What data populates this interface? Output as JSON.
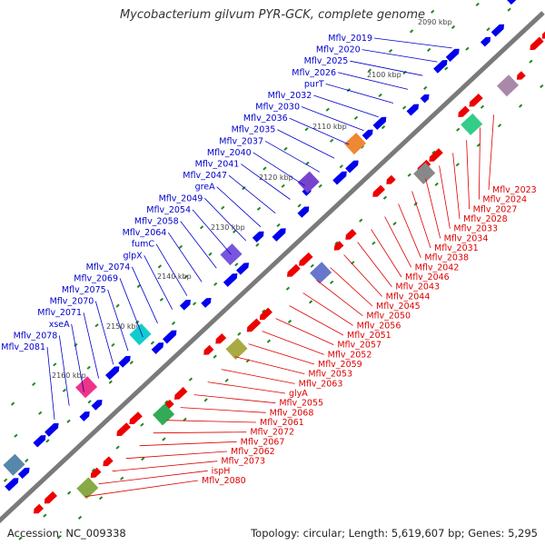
{
  "title": "Mycobacterium gilvum PYR-GCK, complete genome",
  "accession_text": "Accession: NC_009338",
  "topology_text": "Topology: circular; Length: 5,619,607 bp; Genes: 5,295",
  "colors": {
    "backbone": "#7a7a7a",
    "forward_label": "#0000cc",
    "reverse_label": "#dd0000",
    "forward_feature": "#0000ee",
    "reverse_feature": "#ee0000",
    "tick": "#228822"
  },
  "ticks": [
    "2090 kbp",
    "2100 kbp",
    "2110 kbp",
    "2120 kbp",
    "2130 kbp",
    "2140 kbp",
    "2150 kbp",
    "2160 kbp"
  ],
  "forward_labels": [
    "Mflv_2019",
    "Mflv_2020",
    "Mflv_2025",
    "Mflv_2026",
    "purT",
    "Mflv_2032",
    "Mflv_2030",
    "Mflv_2036",
    "Mflv_2035",
    "Mflv_2037",
    "Mflv_2040",
    "Mflv_2041",
    "Mflv_2047",
    "greA",
    "Mflv_2049",
    "Mflv_2054",
    "Mflv_2058",
    "Mflv_2064",
    "fumC",
    "glpX",
    "Mflv_2074",
    "Mflv_2069",
    "Mflv_2075",
    "Mflv_2070",
    "Mflv_2071",
    "xseA",
    "Mflv_2078",
    "Mflv_2081"
  ],
  "reverse_labels": [
    "Mflv_2023",
    "Mflv_2024",
    "Mflv_2027",
    "Mflv_2028",
    "Mflv_2033",
    "Mflv_2034",
    "Mflv_2031",
    "Mflv_2038",
    "Mflv_2042",
    "Mflv_2046",
    "Mflv_2043",
    "Mflv_2044",
    "Mflv_2045",
    "Mflv_2050",
    "Mflv_2056",
    "Mflv_2051",
    "Mflv_2057",
    "Mflv_2052",
    "Mflv_2059",
    "Mflv_2053",
    "Mflv_2063",
    "glyA",
    "Mflv_2055",
    "Mflv_2068",
    "Mflv_2061",
    "Mflv_2072",
    "Mflv_2067",
    "Mflv_2062",
    "Mflv_2073",
    "ispH",
    "Mflv_2080"
  ]
}
